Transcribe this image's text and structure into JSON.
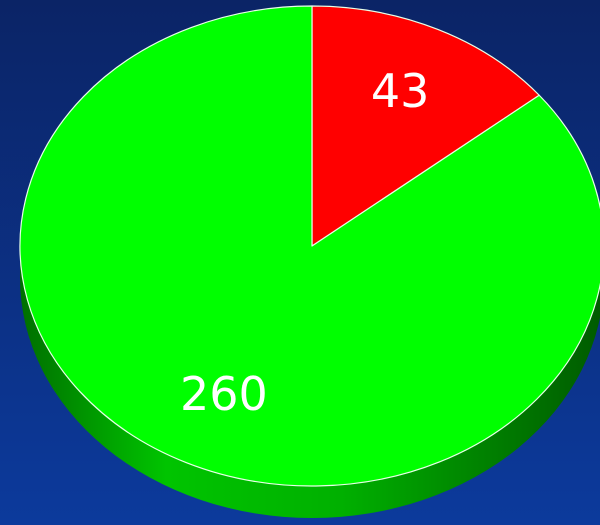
{
  "chart_data": {
    "type": "pie",
    "values": [
      43,
      260
    ],
    "colors": [
      "#ff0000",
      "#00ff00"
    ],
    "three_d": true
  }
}
